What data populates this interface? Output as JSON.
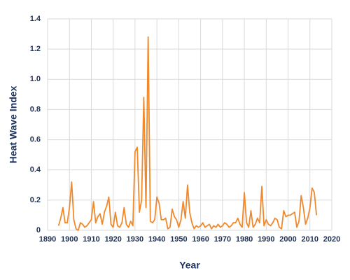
{
  "chart_data": {
    "type": "line",
    "x_label": "Year",
    "y_label": "Heat Wave Index",
    "x": [
      1895,
      1896,
      1897,
      1898,
      1899,
      1900,
      1901,
      1902,
      1903,
      1904,
      1905,
      1906,
      1907,
      1908,
      1909,
      1910,
      1911,
      1912,
      1913,
      1914,
      1915,
      1916,
      1917,
      1918,
      1919,
      1920,
      1921,
      1922,
      1923,
      1924,
      1925,
      1926,
      1927,
      1928,
      1929,
      1930,
      1931,
      1932,
      1933,
      1934,
      1935,
      1936,
      1937,
      1938,
      1939,
      1940,
      1941,
      1942,
      1943,
      1944,
      1945,
      1946,
      1947,
      1948,
      1949,
      1950,
      1951,
      1952,
      1953,
      1954,
      1955,
      1956,
      1957,
      1958,
      1959,
      1960,
      1961,
      1962,
      1963,
      1964,
      1965,
      1966,
      1967,
      1968,
      1969,
      1970,
      1971,
      1972,
      1973,
      1974,
      1975,
      1976,
      1977,
      1978,
      1979,
      1980,
      1981,
      1982,
      1983,
      1984,
      1985,
      1986,
      1987,
      1988,
      1989,
      1990,
      1991,
      1992,
      1993,
      1994,
      1995,
      1996,
      1997,
      1998,
      1999,
      2000,
      2001,
      2002,
      2003,
      2004,
      2005,
      2006,
      2007,
      2008,
      2009,
      2010,
      2011,
      2012,
      2013
    ],
    "series": [
      {
        "color": "#f0892c",
        "values": [
          0.03,
          0.08,
          0.15,
          0.05,
          0.05,
          0.15,
          0.32,
          0.07,
          0.01,
          0.0,
          0.05,
          0.04,
          0.02,
          0.03,
          0.05,
          0.07,
          0.19,
          0.05,
          0.09,
          0.11,
          0.04,
          0.12,
          0.16,
          0.22,
          0.04,
          0.02,
          0.12,
          0.03,
          0.02,
          0.05,
          0.15,
          0.04,
          0.02,
          0.06,
          0.03,
          0.52,
          0.55,
          0.12,
          0.2,
          0.88,
          0.15,
          1.28,
          0.06,
          0.05,
          0.07,
          0.22,
          0.18,
          0.07,
          0.07,
          0.08,
          0.01,
          0.02,
          0.14,
          0.09,
          0.07,
          0.02,
          0.07,
          0.19,
          0.08,
          0.3,
          0.12,
          0.05,
          0.01,
          0.03,
          0.02,
          0.03,
          0.05,
          0.02,
          0.03,
          0.04,
          0.01,
          0.03,
          0.02,
          0.04,
          0.02,
          0.03,
          0.05,
          0.04,
          0.02,
          0.03,
          0.05,
          0.05,
          0.08,
          0.04,
          0.02,
          0.25,
          0.05,
          0.02,
          0.13,
          0.02,
          0.04,
          0.08,
          0.05,
          0.29,
          0.03,
          0.07,
          0.04,
          0.03,
          0.05,
          0.08,
          0.07,
          0.02,
          0.01,
          0.13,
          0.09,
          0.1,
          0.1,
          0.11,
          0.12,
          0.02,
          0.06,
          0.23,
          0.15,
          0.04,
          0.08,
          0.15,
          0.28,
          0.25,
          0.1
        ]
      }
    ],
    "xlim": [
      1890,
      2020
    ],
    "xticks": [
      1890,
      1900,
      1910,
      1920,
      1930,
      1940,
      1950,
      1960,
      1970,
      1980,
      1990,
      2000,
      2010,
      2020
    ],
    "ylim": [
      0,
      1.4
    ],
    "yticks": [
      0,
      0.2,
      0.4,
      0.6,
      0.8,
      {
        "value": 1,
        "label": "1.0"
      },
      1.2,
      1.4
    ],
    "grid": true
  }
}
